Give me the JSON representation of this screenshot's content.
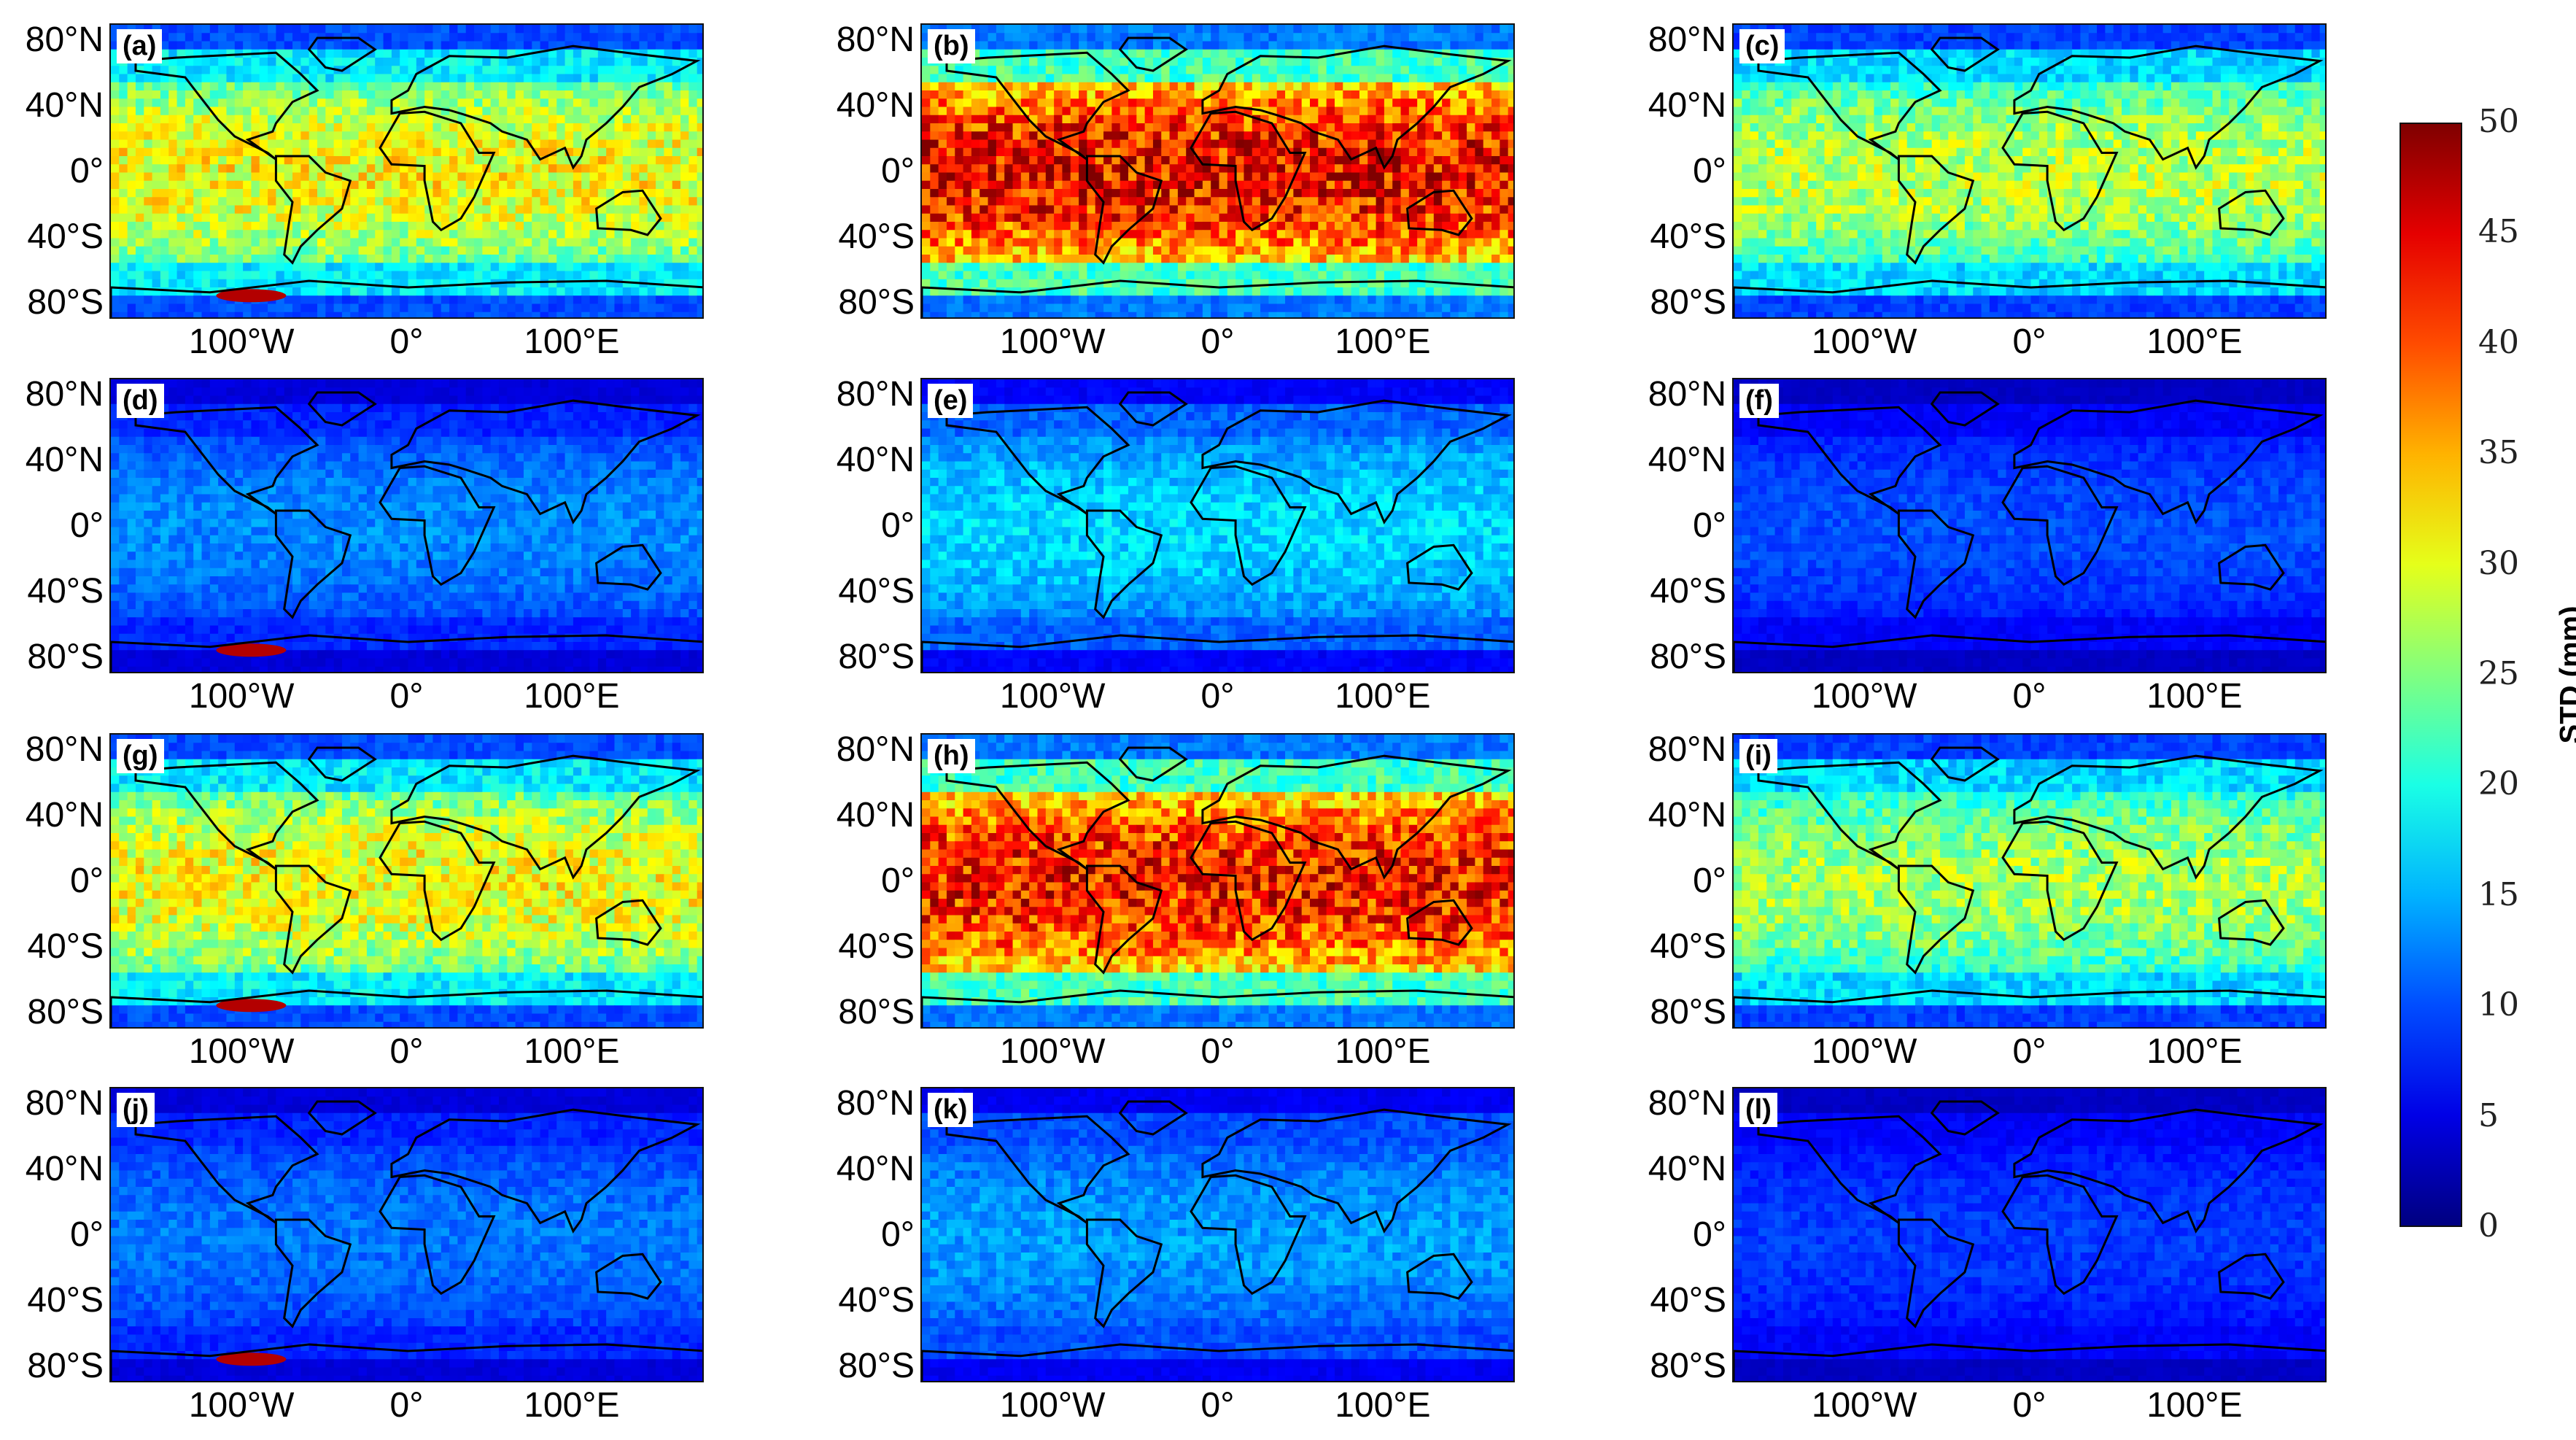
{
  "chart_data": {
    "type": "heatmap",
    "description_note": "12 global maps of STD (mm)",
    "colorbar": {
      "label": "STD (mm)",
      "min": 0,
      "max": 50,
      "ticks": [
        0,
        5,
        10,
        15,
        20,
        25,
        30,
        35,
        40,
        45,
        50
      ],
      "colormap": "jet"
    },
    "lat_tick_labels": [
      "80°N",
      "40°N",
      "0°",
      "40°S",
      "80°S"
    ],
    "lon_tick_labels": [
      "100°W",
      "0°",
      "100°E"
    ],
    "panels": [
      {
        "label": "(a)",
        "tropic_level": 31,
        "polar_level": 18,
        "hotspot": true
      },
      {
        "label": "(b)",
        "tropic_level": 44,
        "polar_level": 22,
        "hotspot": false
      },
      {
        "label": "(c)",
        "tropic_level": 28,
        "polar_level": 17,
        "hotspot": false
      },
      {
        "label": "(d)",
        "tropic_level": 13,
        "polar_level": 8,
        "hotspot": true
      },
      {
        "label": "(e)",
        "tropic_level": 17,
        "polar_level": 11,
        "hotspot": false
      },
      {
        "label": "(f)",
        "tropic_level": 10,
        "polar_level": 6,
        "hotspot": false
      },
      {
        "label": "(g)",
        "tropic_level": 31,
        "polar_level": 18,
        "hotspot": true
      },
      {
        "label": "(h)",
        "tropic_level": 43,
        "polar_level": 22,
        "hotspot": false
      },
      {
        "label": "(i)",
        "tropic_level": 27,
        "polar_level": 17,
        "hotspot": false
      },
      {
        "label": "(j)",
        "tropic_level": 12,
        "polar_level": 8,
        "hotspot": true
      },
      {
        "label": "(k)",
        "tropic_level": 14,
        "polar_level": 10,
        "hotspot": false
      },
      {
        "label": "(l)",
        "tropic_level": 9,
        "polar_level": 6,
        "hotspot": false
      }
    ]
  }
}
